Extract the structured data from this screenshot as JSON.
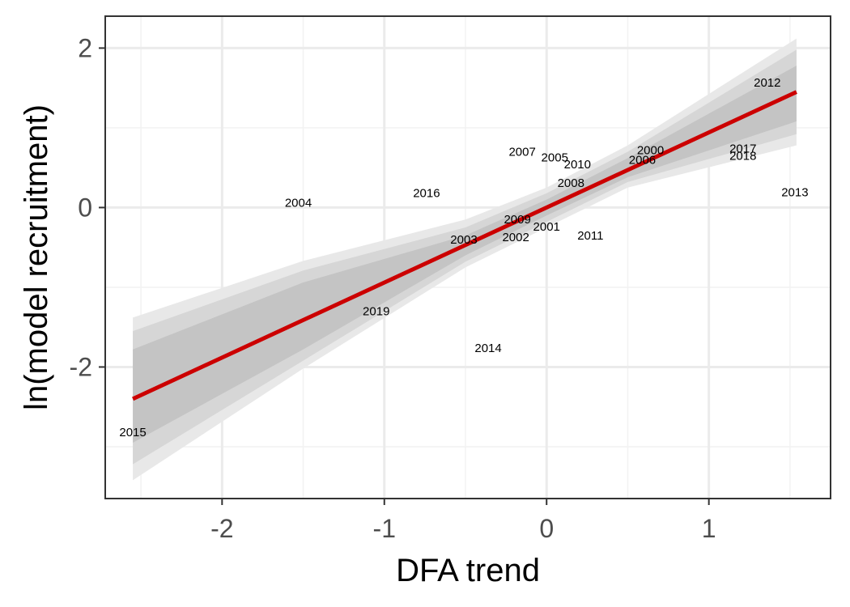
{
  "chart_data": {
    "type": "scatter",
    "title": "",
    "xlabel": "DFA trend",
    "ylabel": "ln(model recruitment)",
    "xlim": [
      -2.72,
      1.75
    ],
    "ylim": [
      -3.65,
      2.4
    ],
    "grid": true,
    "x_ticks": [
      {
        "value": -2,
        "label": "-2"
      },
      {
        "value": -1,
        "label": "-1"
      },
      {
        "value": 0,
        "label": "0"
      },
      {
        "value": 1,
        "label": "1"
      }
    ],
    "y_ticks": [
      {
        "value": -2,
        "label": "-2"
      },
      {
        "value": 0,
        "label": "0"
      },
      {
        "value": 2,
        "label": "2"
      }
    ],
    "x_minor_grid": [
      -2.5,
      -1.5,
      -0.5,
      0.5,
      1.5
    ],
    "y_minor_grid": [
      -3,
      -1,
      1
    ],
    "points": [
      {
        "label": "2000",
        "x": 0.64,
        "y": 0.72
      },
      {
        "label": "2001",
        "x": 0.0,
        "y": -0.24
      },
      {
        "label": "2002",
        "x": -0.19,
        "y": -0.37
      },
      {
        "label": "2003",
        "x": -0.51,
        "y": -0.4
      },
      {
        "label": "2004",
        "x": -1.53,
        "y": 0.06
      },
      {
        "label": "2005",
        "x": 0.05,
        "y": 0.63
      },
      {
        "label": "2006",
        "x": 0.59,
        "y": 0.6
      },
      {
        "label": "2007",
        "x": -0.15,
        "y": 0.7
      },
      {
        "label": "2008",
        "x": 0.15,
        "y": 0.31
      },
      {
        "label": "2009",
        "x": -0.18,
        "y": -0.15
      },
      {
        "label": "2010",
        "x": 0.19,
        "y": 0.54
      },
      {
        "label": "2011",
        "x": 0.27,
        "y": -0.35
      },
      {
        "label": "2012",
        "x": 1.36,
        "y": 1.57
      },
      {
        "label": "2013",
        "x": 1.53,
        "y": 0.19
      },
      {
        "label": "2014",
        "x": -0.36,
        "y": -1.76
      },
      {
        "label": "2015",
        "x": -2.55,
        "y": -2.82
      },
      {
        "label": "2016",
        "x": -0.74,
        "y": 0.18
      },
      {
        "label": "2017",
        "x": 1.21,
        "y": 0.74
      },
      {
        "label": "2018",
        "x": 1.21,
        "y": 0.65
      },
      {
        "label": "2019",
        "x": -1.05,
        "y": -1.3
      }
    ],
    "fit_line": {
      "x": [
        -2.55,
        1.54
      ],
      "y": [
        -2.4,
        1.45
      ],
      "color": "#cc0000"
    },
    "ribbons": [
      {
        "x": [
          -2.55,
          -1.5,
          -0.5,
          0.0,
          0.5,
          1.54
        ],
        "lower": [
          -3.42,
          -2.02,
          -0.75,
          -0.25,
          0.25,
          0.78
        ],
        "upper": [
          -1.38,
          -0.67,
          -0.15,
          0.25,
          0.78,
          2.12
        ],
        "color": "#e8e8e8"
      },
      {
        "x": [
          -2.55,
          -1.5,
          -0.5,
          0.0,
          0.5,
          1.54
        ],
        "lower": [
          -3.22,
          -1.92,
          -0.68,
          -0.18,
          0.32,
          0.92
        ],
        "upper": [
          -1.55,
          -0.79,
          -0.25,
          0.18,
          0.7,
          1.98
        ],
        "color": "#d6d6d6"
      },
      {
        "x": [
          -2.55,
          -1.5,
          -0.5,
          0.0,
          0.5,
          1.54
        ],
        "lower": [
          -2.95,
          -1.78,
          -0.6,
          -0.1,
          0.38,
          1.08
        ],
        "upper": [
          -1.78,
          -0.94,
          -0.35,
          0.1,
          0.62,
          1.78
        ],
        "color": "#c4c4c4"
      }
    ]
  }
}
